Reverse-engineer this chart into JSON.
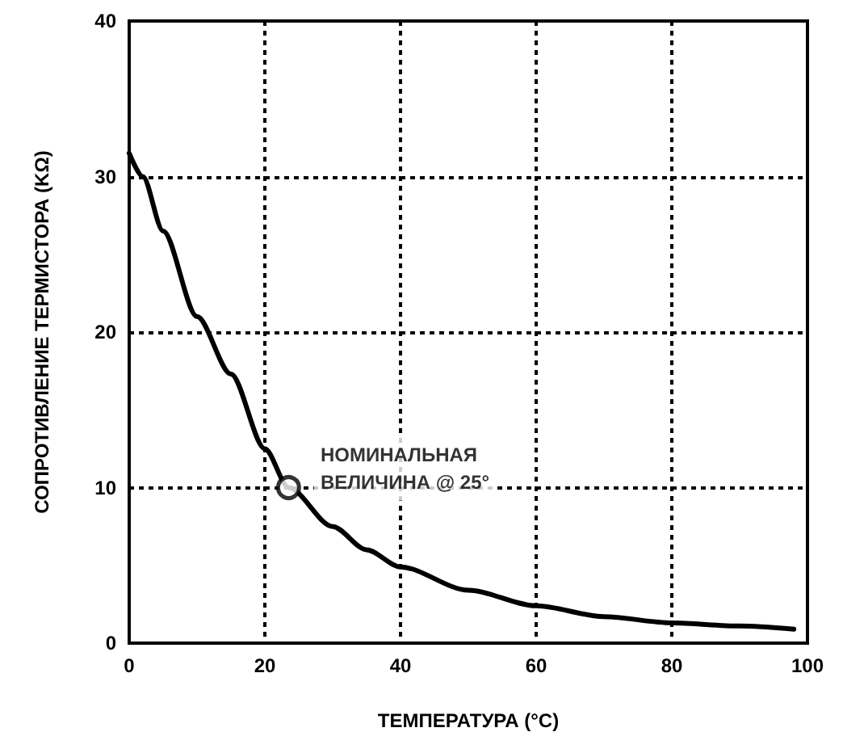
{
  "chart_data": {
    "type": "line",
    "xlabel": "ТЕМПЕРАТУРА (°C)",
    "ylabel": "СОПРОТИВЛЕНИЕ ТЕРМИСТОРА (KΩ)",
    "xlim": [
      0,
      100
    ],
    "xticks": [
      0,
      20,
      40,
      60,
      80,
      100
    ],
    "ylim": [
      0,
      40
    ],
    "yticks": [
      0,
      10,
      20,
      30,
      40
    ],
    "grid": true,
    "marker": "none",
    "line_style": "solid",
    "series": [
      {
        "color": "#000000",
        "x": [
          0,
          2,
          5,
          10,
          15,
          20,
          23.5,
          30,
          35,
          40,
          50,
          60,
          70,
          80,
          90,
          98
        ],
        "values": [
          31.5,
          30,
          26.5,
          21,
          17.3,
          12.5,
          10,
          7.5,
          6,
          4.9,
          3.4,
          2.4,
          1.7,
          1.3,
          1.1,
          0.9
        ]
      }
    ],
    "annotations": [
      {
        "text": "НОМИНАЛЬНАЯ\nВЕЛИЧИНА @ 25°",
        "x": 23.5,
        "y": 10
      }
    ]
  }
}
